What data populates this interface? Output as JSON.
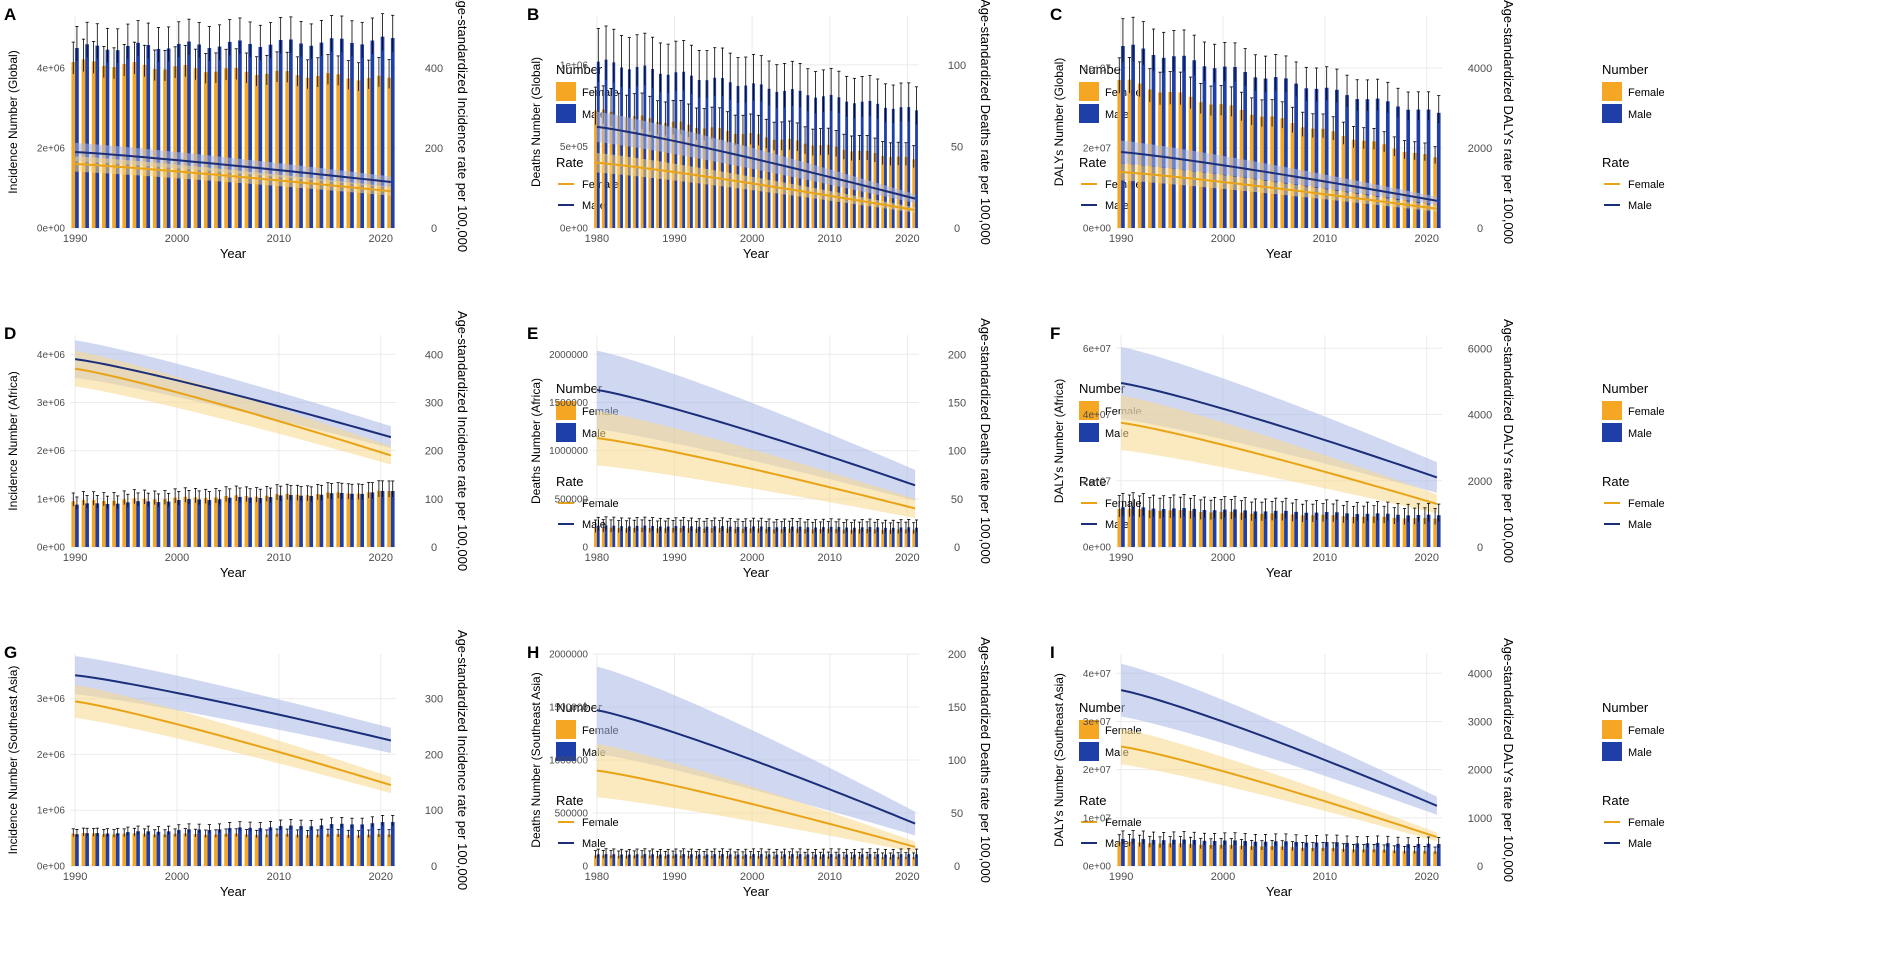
{
  "legend": {
    "number_title": "Number",
    "rate_title": "Rate",
    "female": "Female",
    "male": "Male"
  },
  "colors": {
    "female_bar": "#F5A623",
    "male_bar": "#1F3FA8",
    "female_line": "#E8A317",
    "male_line": "#1B2E7A",
    "female_band": "#F8D98A",
    "male_band": "#A9B8E6",
    "grid": "#EBEBEB",
    "error_bar": "#000000"
  },
  "chart_data": [
    {
      "panel": "A",
      "type": "bar+line",
      "xlabel": "Year",
      "ylabel": "Incidence Number (Global)",
      "y2label": "Age-standardized Incidence rate per 100,000",
      "years": [
        1990,
        2021
      ],
      "xticks": [
        "1990",
        "2000",
        "2010",
        "2020"
      ],
      "ylim": [
        0,
        5300000
      ],
      "yticks": [
        0,
        2000000,
        4000000
      ],
      "ytick_labels": [
        "0e+00",
        "2e+06",
        "4e+06"
      ],
      "y2lim": [
        0,
        530
      ],
      "y2ticks": [
        0,
        200,
        400
      ],
      "y2tick_labels": [
        "0",
        "200",
        "400"
      ],
      "bars": {
        "female_start": 4150000,
        "female_end": 3720000,
        "male_start": 4500000,
        "male_end": 4700000,
        "err_frac": 0.12
      },
      "lines": {
        "female_start": 160,
        "female_end": 92,
        "male_start": 190,
        "male_end": 115,
        "band_frac": 0.12,
        "bands_on_top": false
      }
    },
    {
      "panel": "B",
      "type": "bar+line",
      "xlabel": "Year",
      "ylabel": "Deaths Number (Global)",
      "y2label": "Age-standardized Deaths rate per 100,000",
      "years": [
        1980,
        2021
      ],
      "xticks": [
        "1980",
        "1990",
        "2000",
        "2010",
        "2020"
      ],
      "ylim": [
        0,
        1300000
      ],
      "yticks": [
        0,
        500000,
        1000000
      ],
      "ytick_labels": [
        "0e+00",
        "5e+05",
        "1e+06"
      ],
      "y2lim": [
        0,
        130
      ],
      "y2ticks": [
        0,
        50,
        100
      ],
      "y2tick_labels": [
        "0",
        "50",
        "100"
      ],
      "bars": {
        "female_start": 720000,
        "female_end": 420000,
        "male_start": 1020000,
        "male_end": 720000,
        "err_frac": 0.2
      },
      "lines": {
        "female_start": 40,
        "female_end": 11,
        "male_start": 62,
        "male_end": 18,
        "band_frac": 0.15,
        "bands_on_top": false
      }
    },
    {
      "panel": "C",
      "type": "bar+line",
      "xlabel": "Year",
      "ylabel": "DALYs Number (Global)",
      "y2label": "Age-standardized DALYs rate per 100,000",
      "years": [
        1990,
        2021
      ],
      "xticks": [
        "1990",
        "2000",
        "2010",
        "2020"
      ],
      "ylim": [
        0,
        53000000
      ],
      "yticks": [
        0,
        20000000,
        40000000
      ],
      "ytick_labels": [
        "0e+00",
        "2e+07",
        "4e+07"
      ],
      "y2lim": [
        0,
        5300
      ],
      "y2ticks": [
        0,
        2000,
        4000
      ],
      "y2tick_labels": [
        "0",
        "2000",
        "4000"
      ],
      "bars": {
        "female_start": 37000000,
        "female_end": 17500000,
        "male_start": 45500000,
        "male_end": 28500000,
        "err_frac": 0.15
      },
      "lines": {
        "female_start": 1400,
        "female_end": 480,
        "male_start": 1900,
        "male_end": 680,
        "band_frac": 0.15,
        "bands_on_top": false
      }
    },
    {
      "panel": "D",
      "type": "bar+line",
      "xlabel": "Year",
      "ylabel": "Incidence Number (Africa)",
      "y2label": "Age-standardized Incidence rate per 100,000",
      "years": [
        1990,
        2021
      ],
      "xticks": [
        "1990",
        "2000",
        "2010",
        "2020"
      ],
      "ylim": [
        0,
        4400000
      ],
      "yticks": [
        0,
        1000000,
        2000000,
        3000000,
        4000000
      ],
      "ytick_labels": [
        "0e+00",
        "1e+06",
        "2e+06",
        "3e+06",
        "4e+06"
      ],
      "y2lim": [
        0,
        440
      ],
      "y2ticks": [
        0,
        100,
        200,
        300,
        400
      ],
      "y2tick_labels": [
        "0",
        "100",
        "200",
        "300",
        "400"
      ],
      "bars": {
        "female_start": 950000,
        "female_end": 1150000,
        "male_start": 880000,
        "male_end": 1150000,
        "err_frac": 0.18
      },
      "lines": {
        "female_start": 370,
        "female_end": 190,
        "male_start": 390,
        "male_end": 228,
        "band_frac": 0.1,
        "bands_on_top": true
      }
    },
    {
      "panel": "E",
      "type": "bar+line",
      "xlabel": "Year",
      "ylabel": "Deaths Number (Africa)",
      "y2label": "Age-standardized Deaths rate per 100,000",
      "years": [
        1980,
        2021
      ],
      "xticks": [
        "1980",
        "1990",
        "2000",
        "2010",
        "2020"
      ],
      "ylim": [
        0,
        2200000
      ],
      "yticks": [
        0,
        500000,
        1000000,
        1500000,
        2000000
      ],
      "ytick_labels": [
        "0",
        "500000",
        "1000000",
        "1500000",
        "2000000"
      ],
      "y2lim": [
        0,
        220
      ],
      "y2ticks": [
        0,
        50,
        100,
        150,
        200
      ],
      "y2tick_labels": [
        "0",
        "50",
        "100",
        "150",
        "200"
      ],
      "bars": {
        "female_start": 200000,
        "female_end": 180000,
        "male_start": 220000,
        "male_end": 200000,
        "err_frac": 0.4
      },
      "lines": {
        "female_start": 113,
        "female_end": 40,
        "male_start": 163,
        "male_end": 64,
        "band_frac": 0.25,
        "bands_on_top": true
      }
    },
    {
      "panel": "F",
      "type": "bar+line",
      "xlabel": "Year",
      "ylabel": "DALYs Number (Africa)",
      "y2label": "Age-standardized DALYs rate per 100,000",
      "years": [
        1990,
        2021
      ],
      "xticks": [
        "1990",
        "2000",
        "2010",
        "2020"
      ],
      "ylim": [
        0,
        64000000
      ],
      "yticks": [
        0,
        20000000,
        40000000,
        60000000
      ],
      "ytick_labels": [
        "0e+00",
        "2e+07",
        "4e+07",
        "6e+07"
      ],
      "y2lim": [
        0,
        6400
      ],
      "y2ticks": [
        0,
        2000,
        4000,
        6000
      ],
      "y2tick_labels": [
        "0",
        "2000",
        "4000",
        "6000"
      ],
      "bars": {
        "female_start": 11500000,
        "female_end": 8500000,
        "male_start": 12000000,
        "male_end": 9500000,
        "err_frac": 0.35
      },
      "lines": {
        "female_start": 3750,
        "female_end": 1300,
        "male_start": 4950,
        "male_end": 2100,
        "band_frac": 0.22,
        "bands_on_top": true
      }
    },
    {
      "panel": "G",
      "type": "bar+line",
      "xlabel": "Year",
      "ylabel": "Incidence Number (Southeast Asia)",
      "y2label": "Age-standardized Incidence rate per 100,000",
      "years": [
        1990,
        2021
      ],
      "xticks": [
        "1990",
        "2000",
        "2010",
        "2020"
      ],
      "ylim": [
        0,
        3800000
      ],
      "yticks": [
        0,
        1000000,
        2000000,
        3000000
      ],
      "ytick_labels": [
        "0e+00",
        "1e+06",
        "2e+06",
        "3e+06"
      ],
      "y2lim": [
        0,
        380
      ],
      "y2ticks": [
        0,
        100,
        200,
        300
      ],
      "y2tick_labels": [
        "0",
        "100",
        "200",
        "300"
      ],
      "bars": {
        "female_start": 580000,
        "female_end": 560000,
        "male_start": 570000,
        "male_end": 780000,
        "err_frac": 0.15
      },
      "lines": {
        "female_start": 295,
        "female_end": 145,
        "male_start": 342,
        "male_end": 225,
        "band_frac": 0.1,
        "bands_on_top": true
      }
    },
    {
      "panel": "H",
      "type": "bar+line",
      "xlabel": "Year",
      "ylabel": "Deaths Number (Southeast Asia)",
      "y2label": "Age-standardized Deaths rate per 100,000",
      "years": [
        1980,
        2021
      ],
      "xticks": [
        "1980",
        "1990",
        "2000",
        "2010",
        "2020"
      ],
      "ylim": [
        0,
        2000000
      ],
      "yticks": [
        0,
        500000,
        1000000,
        1500000,
        2000000
      ],
      "ytick_labels": [
        "0",
        "500000",
        "1000000",
        "1500000",
        "2000000"
      ],
      "y2lim": [
        0,
        200
      ],
      "y2ticks": [
        0,
        50,
        100,
        150,
        200
      ],
      "y2tick_labels": [
        "0",
        "50",
        "100",
        "150",
        "200"
      ],
      "bars": {
        "female_start": 100000,
        "female_end": 85000,
        "male_start": 110000,
        "male_end": 110000,
        "err_frac": 0.45
      },
      "lines": {
        "female_start": 90,
        "female_end": 18,
        "male_start": 147,
        "male_end": 40,
        "band_frac": 0.28,
        "bands_on_top": true
      }
    },
    {
      "panel": "I",
      "type": "bar+line",
      "xlabel": "Year",
      "ylabel": "DALYs Number (Southeast Asia)",
      "y2label": "Age-standardized DALYs rate per 100,000",
      "years": [
        1990,
        2021
      ],
      "xticks": [
        "1990",
        "2000",
        "2010",
        "2020"
      ],
      "ylim": [
        0,
        44000000
      ],
      "yticks": [
        0,
        10000000,
        20000000,
        30000000,
        40000000
      ],
      "ytick_labels": [
        "0e+00",
        "1e+07",
        "2e+07",
        "3e+07",
        "4e+07"
      ],
      "y2lim": [
        0,
        4400
      ],
      "y2ticks": [
        0,
        1000,
        2000,
        3000,
        4000
      ],
      "y2tick_labels": [
        "0",
        "1000",
        "2000",
        "3000",
        "4000"
      ],
      "bars": {
        "female_start": 5000000,
        "female_end": 3000000,
        "male_start": 5600000,
        "male_end": 4500000,
        "err_frac": 0.3
      },
      "lines": {
        "female_start": 2480,
        "female_end": 600,
        "male_start": 3650,
        "male_end": 1250,
        "band_frac": 0.15,
        "bands_on_top": true
      }
    }
  ]
}
